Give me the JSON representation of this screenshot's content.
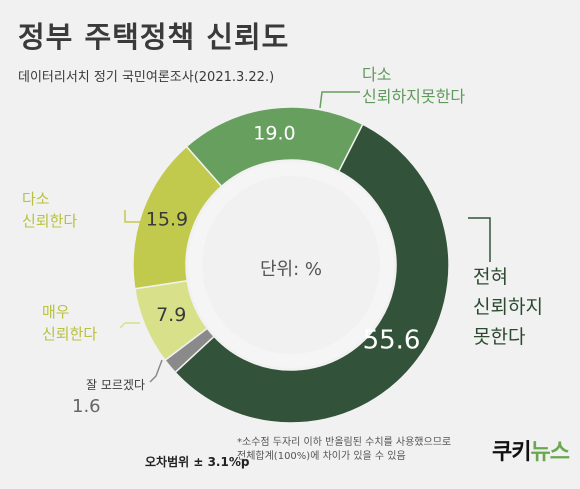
{
  "header": {
    "title": "정부 주택정책 신뢰도",
    "subtitle": "데이터리서치 정기 국민여론조사(2021.3.22.)"
  },
  "chart_data": {
    "type": "pie",
    "donut": true,
    "unit_label": "단위: %",
    "slices": [
      {
        "label_lines": [
          "전혀",
          "신뢰하지",
          "못한다"
        ],
        "value": 55.6,
        "color": "#33523a"
      },
      {
        "label_lines": [
          "잘 모르겠다"
        ],
        "value": 1.6,
        "color": "#8a8a8a"
      },
      {
        "label_lines": [
          "매우",
          "신뢰한다"
        ],
        "value": 7.9,
        "color": "#d8e08a"
      },
      {
        "label_lines": [
          "다소",
          "신뢰한다"
        ],
        "value": 15.9,
        "color": "#c2ca4e"
      },
      {
        "label_lines": [
          "다소",
          "신뢰하지못한다"
        ],
        "value": 19.0,
        "color": "#67a05e"
      }
    ]
  },
  "labels": {
    "not_at_all": [
      "전혀",
      "신뢰하지",
      "못한다"
    ],
    "dont_know": "잘 모르겠다",
    "very_trust": [
      "매우",
      "신뢰한다"
    ],
    "somewhat_trust": [
      "다소",
      "신뢰한다"
    ],
    "somewhat_distrust": [
      "다소",
      "신뢰하지못한다"
    ]
  },
  "footer": {
    "margin_of_error": "오차범위 ± 3.1%p",
    "footnote_line1": "*소수점 두자리 이하 반올림된 수치를 사용했으므로",
    "footnote_line2": "전체합계(100%)에 차이가 있을 수 있음",
    "logo_part1": "쿠키",
    "logo_part2": "뉴스"
  }
}
